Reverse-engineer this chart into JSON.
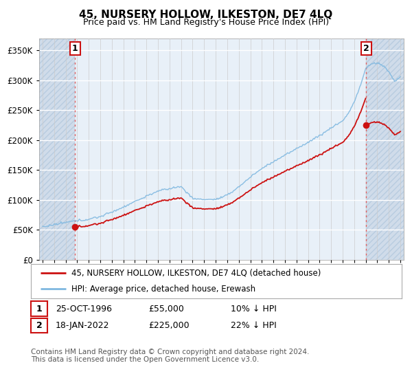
{
  "title": "45, NURSERY HOLLOW, ILKESTON, DE7 4LQ",
  "subtitle": "Price paid vs. HM Land Registry's House Price Index (HPI)",
  "ylim": [
    0,
    370000
  ],
  "yticks": [
    0,
    50000,
    100000,
    150000,
    200000,
    250000,
    300000,
    350000
  ],
  "ytick_labels": [
    "£0",
    "£50K",
    "£100K",
    "£150K",
    "£200K",
    "£250K",
    "£300K",
    "£350K"
  ],
  "xlim_start": 1993.7,
  "xlim_end": 2025.3,
  "hpi_color": "#7fb8e0",
  "price_color": "#cc1111",
  "marker_color": "#cc1111",
  "dashed_line_color": "#e06060",
  "sale1_year": 1996.82,
  "sale1_price": 55000,
  "sale2_year": 2022.05,
  "sale2_price": 225000,
  "legend_label1": "45, NURSERY HOLLOW, ILKESTON, DE7 4LQ (detached house)",
  "legend_label2": "HPI: Average price, detached house, Erewash",
  "note1_date": "25-OCT-1996",
  "note1_price": "£55,000",
  "note1_hpi": "10% ↓ HPI",
  "note2_date": "18-JAN-2022",
  "note2_price": "£225,000",
  "note2_hpi": "22% ↓ HPI",
  "footer": "Contains HM Land Registry data © Crown copyright and database right 2024.\nThis data is licensed under the Open Government Licence v3.0.",
  "plot_bg": "#e8f0f8",
  "hatch_bg": "#d0dcea"
}
